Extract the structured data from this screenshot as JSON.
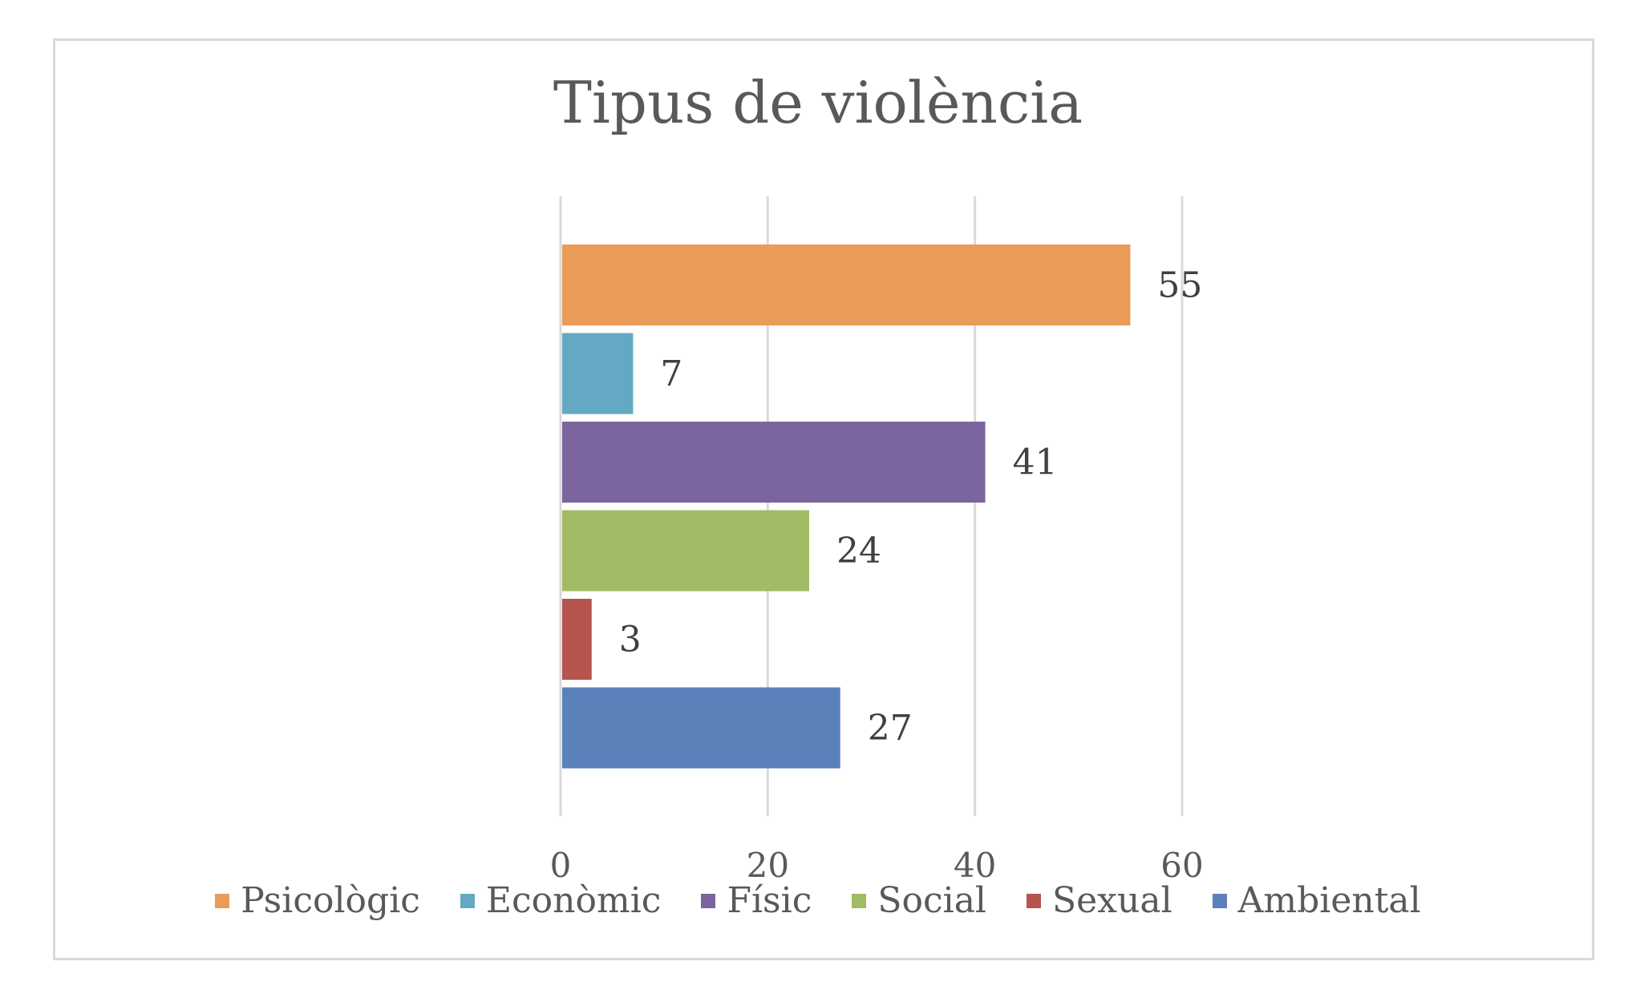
{
  "chart_data": {
    "type": "bar",
    "orientation": "horizontal",
    "title": "Tipus de violència",
    "xlabel": "",
    "ylabel": "",
    "xlim": [
      0,
      60
    ],
    "ticks": [
      "0",
      "20",
      "40",
      "60"
    ],
    "grid": true,
    "legend_position": "bottom",
    "series": [
      {
        "name": "Psicològic",
        "value": 55,
        "color": "#E99B57"
      },
      {
        "name": "Econòmic",
        "value": 7,
        "color": "#64A9C4"
      },
      {
        "name": "Físic",
        "value": 41,
        "color": "#7C659E"
      },
      {
        "name": "Social",
        "value": 24,
        "color": "#A2BB65"
      },
      {
        "name": "Sexual",
        "value": 3,
        "color": "#B6544F"
      },
      {
        "name": "Ambiental",
        "value": 27,
        "color": "#5A81BA"
      }
    ]
  }
}
